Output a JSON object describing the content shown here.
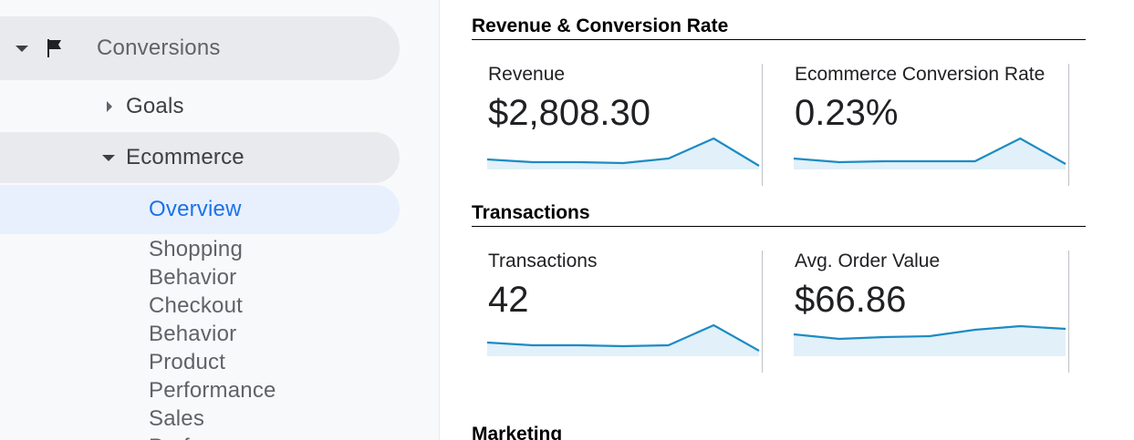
{
  "sidebar": {
    "section": {
      "label": "Conversions",
      "icon": "flag-icon"
    },
    "goals": {
      "label": "Goals"
    },
    "ecommerce": {
      "label": "Ecommerce"
    },
    "overview": {
      "label": "Overview"
    },
    "items": [
      {
        "label": "Shopping"
      },
      {
        "label": "Behavior"
      },
      {
        "label": "Checkout"
      },
      {
        "label": "Behavior"
      },
      {
        "label": "Product"
      },
      {
        "label": "Performance"
      },
      {
        "label": "Sales"
      },
      {
        "label": "Perf"
      }
    ]
  },
  "sections": [
    {
      "title": "Revenue & Conversion Rate",
      "cards": [
        {
          "label": "Revenue",
          "value": "$2,808.30",
          "trend": [
            1.1,
            0.8,
            0.8,
            0.7,
            1.2,
            3.4,
            0.4
          ]
        },
        {
          "label": "Ecommerce Conversion Rate",
          "value": "0.23%",
          "trend": [
            1.2,
            0.8,
            0.9,
            0.9,
            0.9,
            3.4,
            0.6
          ]
        }
      ]
    },
    {
      "title": "Transactions",
      "cards": [
        {
          "label": "Transactions",
          "value": "42",
          "trend": [
            1.5,
            1.2,
            1.2,
            1.1,
            1.2,
            3.4,
            0.6
          ]
        },
        {
          "label": "Avg. Order Value",
          "value": "$66.86",
          "trend": [
            2.4,
            1.9,
            2.1,
            2.2,
            2.9,
            3.3,
            3.0
          ]
        }
      ]
    },
    {
      "title": "Marketing"
    }
  ],
  "colors": {
    "spark_line": "#1e8bc3",
    "spark_fill": "#e1f0f9",
    "active": "#1a73e8"
  }
}
